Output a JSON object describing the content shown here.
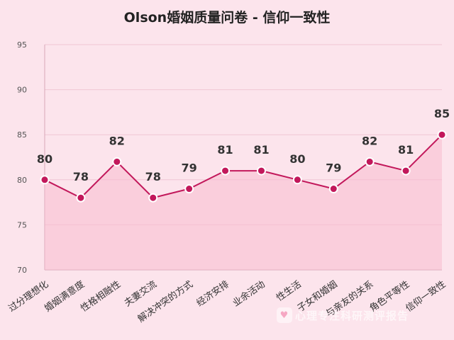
{
  "chart_data": {
    "type": "area",
    "title": "Olson婚姻质量问卷 - 信仰一致性",
    "categories": [
      "过分理想化",
      "婚姻满意度",
      "性格相融性",
      "夫妻交流",
      "解决冲突的方式",
      "经济安排",
      "业余活动",
      "性生活",
      "子女和婚姻",
      "与亲友的关系",
      "角色平等性",
      "信仰一致性"
    ],
    "values": [
      80,
      78,
      82,
      78,
      79,
      81,
      81,
      80,
      79,
      82,
      81,
      85
    ],
    "ylim": [
      70,
      95
    ],
    "yticks": [
      70,
      75,
      80,
      85,
      90,
      95
    ],
    "grid": true,
    "legend": "none",
    "colors": {
      "line": "#c2185b",
      "fill": "#f8bbd0",
      "marker": "#c2185b",
      "grid": "#f0c6d4"
    }
  },
  "watermark": {
    "text": "心理专注科研测评报告",
    "logo_icon": "heart-icon"
  }
}
